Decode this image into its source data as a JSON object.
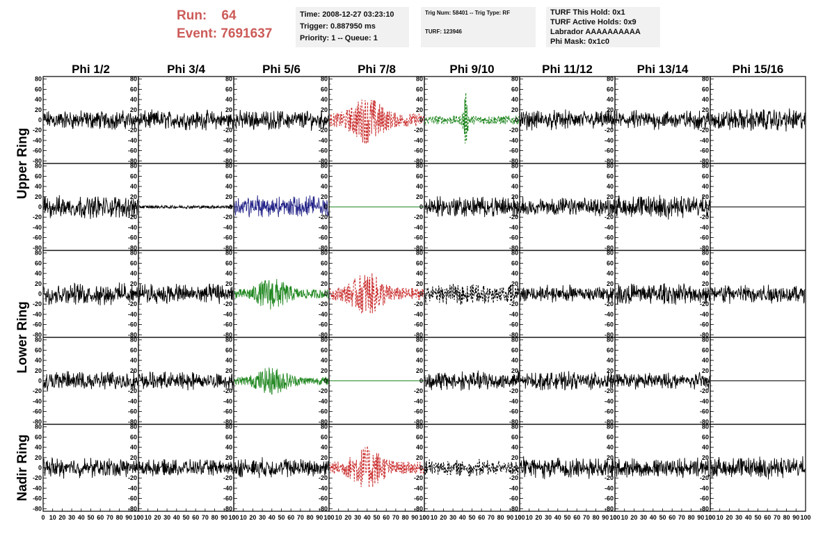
{
  "header": {
    "run_label": "Run:",
    "run_value": "64",
    "event_label": "Event:",
    "event_value": "7691637",
    "time": "Time: 2008-12-27 03:23:10",
    "trigger": "Trigger: 0.887950 ms",
    "priority": "Priority: 1 -- Queue: 1",
    "trig_num": "Trig Num: 58401 -- Trig Type: RF",
    "turf": "TURF: 123946",
    "turf_hold": "TURF This Hold: 0x1",
    "turf_active": "TURF Active Holds: 0x9",
    "labrador": "Labrador AAAAAAAAAA",
    "phi_mask": "Phi Mask: 0x1c0"
  },
  "colors": {
    "red": "#cc3333",
    "green": "#228822",
    "blue": "#222288",
    "black": "#000000",
    "title_red": "#cc5b58",
    "box_bg": "#f1f1f1"
  },
  "chart_data": {
    "type": "line",
    "columns": [
      "Phi 1/2",
      "Phi 3/4",
      "Phi 5/6",
      "Phi 7/8",
      "Phi 9/10",
      "Phi 11/12",
      "Phi 13/14",
      "Phi 15/16"
    ],
    "rows": [
      "Upper Ring",
      "Lower Ring",
      "Nadir Ring"
    ],
    "ring_row_spans": [
      2,
      2,
      1
    ],
    "xlim": [
      0,
      100
    ],
    "ylim": [
      -85,
      85
    ],
    "y_ticks": [
      "80",
      "60",
      "40",
      "20",
      "0",
      "-20",
      "-40",
      "-60",
      "-80"
    ],
    "x_tick_labels": [
      "0",
      "10",
      "20",
      "30",
      "40",
      "50",
      "60",
      "70",
      "80",
      "90",
      "100"
    ],
    "panels": [
      [
        "black:noise:12",
        "black:noise:12",
        "black:noise:12",
        "red-dashed:burst:22",
        "green-dashed:spike:14",
        "black:noise:12",
        "black:noise:12",
        "black:noise:14"
      ],
      [
        "black:noise:14",
        "black:small:3",
        "blue:noise:14",
        "green:flat:0",
        "black:noise:13",
        "black:noise:11",
        "black:noise:14",
        "black:flat:0"
      ],
      [
        "black:noise:13",
        "black:noise:12",
        "green:burst:15",
        "red-dashed:burst:20",
        "black-dashed:noise:12",
        "black:noise:11",
        "black:noise:13",
        "black:noise:12"
      ],
      [
        "black:noise:12",
        "black:noise:11",
        "green:burst:13",
        "green:flat:0",
        "black:noise:12",
        "black:noise:11",
        "black:noise:10",
        "black:flat:0"
      ],
      [
        "black:noise:12",
        "black:noise:10",
        "black:noise:12",
        "red-dashed:burst:20",
        "black-dashed:noise:10",
        "black:noise:13",
        "black:noise:12",
        "black:noise:13"
      ]
    ]
  }
}
